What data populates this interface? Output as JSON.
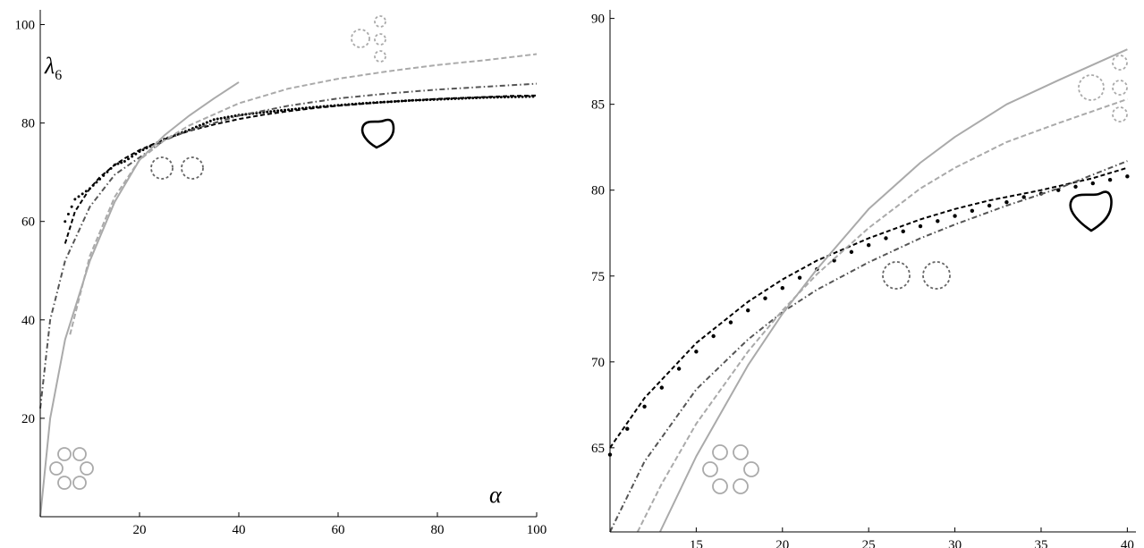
{
  "chart_data": [
    {
      "type": "line",
      "title": "",
      "xlabel": "α",
      "ylabel": "λ",
      "ylabel_subscript": "6",
      "xlim": [
        0,
        100
      ],
      "ylim": [
        0,
        103
      ],
      "x_ticks": [
        "20",
        "40",
        "60",
        "80",
        "100"
      ],
      "y_ticks": [
        "20",
        "40",
        "60",
        "80",
        "100"
      ],
      "grid": false,
      "legend": "none",
      "series": [
        {
          "style": "dotted-black",
          "x": [
            5,
            7,
            10,
            12,
            15,
            17,
            20,
            25,
            30,
            35,
            40,
            45,
            50,
            55,
            60,
            65,
            70,
            75,
            80,
            85,
            90,
            95,
            100
          ],
          "y": [
            60,
            64.5,
            66.7,
            68.6,
            71.5,
            72.2,
            74.2,
            76.7,
            78.6,
            80.7,
            81.6,
            82.2,
            82.7,
            83.2,
            83.6,
            84.0,
            84.3,
            84.6,
            84.8,
            85.0,
            85.2,
            85.3,
            85.4
          ]
        },
        {
          "style": "dashed-black",
          "x": [
            5,
            7,
            10,
            12,
            15,
            17,
            20,
            25,
            30,
            35,
            40,
            45,
            50,
            55,
            60,
            65,
            70,
            75,
            80,
            85,
            90,
            95,
            100
          ],
          "y": [
            55.5,
            62.0,
            66.7,
            69.0,
            71.5,
            72.8,
            74.5,
            76.7,
            78.4,
            79.7,
            80.8,
            81.7,
            82.4,
            83.0,
            83.5,
            83.9,
            84.3,
            84.6,
            84.9,
            85.1,
            85.3,
            85.5,
            85.6
          ]
        },
        {
          "style": "dashdot-dark-gray",
          "x": [
            0,
            2,
            5,
            10,
            15,
            20,
            25,
            30,
            40,
            50,
            60,
            70,
            80,
            90,
            100
          ],
          "y": [
            22,
            40,
            52,
            63,
            69.5,
            73,
            76.5,
            78.5,
            81.5,
            83.5,
            85,
            86,
            86.8,
            87.4,
            88
          ]
        },
        {
          "style": "dashed-light-gray",
          "x": [
            6,
            10,
            15,
            20,
            25,
            30,
            40,
            50,
            60,
            70,
            80,
            90,
            100
          ],
          "y": [
            37,
            53,
            65,
            72.5,
            76.5,
            79.5,
            84,
            87,
            89,
            90.5,
            91.8,
            92.8,
            94
          ]
        },
        {
          "style": "solid-light-gray",
          "x": [
            0,
            2,
            5,
            10,
            15,
            20,
            25,
            30,
            35,
            40
          ],
          "y": [
            0,
            20,
            36,
            52,
            64,
            72.5,
            77.5,
            81.5,
            85,
            88.3
          ]
        }
      ]
    },
    {
      "type": "line",
      "title": "",
      "xlabel": "",
      "ylabel": "",
      "xlim": [
        10,
        40.5
      ],
      "ylim": [
        60.1,
        90.5
      ],
      "x_ticks": [
        "15",
        "20",
        "25",
        "30",
        "35",
        "40"
      ],
      "y_ticks": [
        "65",
        "70",
        "75",
        "80",
        "85",
        "90"
      ],
      "grid": false,
      "legend": "none",
      "series": [
        {
          "style": "dotted-black",
          "x": [
            10,
            11,
            12,
            13,
            14,
            15,
            16,
            17,
            18,
            19,
            20,
            21,
            22,
            23,
            24,
            25,
            26,
            27,
            28,
            29,
            30,
            31,
            32,
            33,
            34,
            35,
            36,
            37,
            38,
            39,
            40
          ],
          "y": [
            64.6,
            66.1,
            67.4,
            68.5,
            69.6,
            70.6,
            71.5,
            72.3,
            73.0,
            73.7,
            74.3,
            74.9,
            75.4,
            75.9,
            76.4,
            76.8,
            77.2,
            77.6,
            77.9,
            78.2,
            78.5,
            78.8,
            79.1,
            79.3,
            79.6,
            79.8,
            80.0,
            80.2,
            80.4,
            80.6,
            80.8
          ]
        },
        {
          "style": "dashed-black",
          "x": [
            10,
            12,
            15,
            18,
            20,
            22,
            25,
            28,
            30,
            32,
            35,
            38,
            40
          ],
          "y": [
            65.0,
            67.9,
            71.1,
            73.5,
            74.8,
            75.9,
            77.2,
            78.3,
            78.9,
            79.4,
            80.0,
            80.7,
            81.3
          ]
        },
        {
          "style": "dashdot-dark-gray",
          "x": [
            10,
            12,
            15,
            18,
            20,
            22,
            25,
            28,
            30,
            33,
            36,
            40
          ],
          "y": [
            60.1,
            64.2,
            68.4,
            71.3,
            72.9,
            74.2,
            75.8,
            77.2,
            78.0,
            79.1,
            80.1,
            81.7
          ]
        },
        {
          "style": "dashed-light-gray",
          "x": [
            11.6,
            13,
            15,
            18,
            20,
            22,
            25,
            28,
            30,
            33,
            36,
            40
          ],
          "y": [
            60.1,
            62.9,
            66.4,
            70.6,
            73.0,
            75.1,
            77.8,
            80.1,
            81.3,
            82.8,
            83.9,
            85.3
          ]
        },
        {
          "style": "solid-light-gray",
          "x": [
            12.9,
            15,
            18,
            20,
            22,
            25,
            28,
            30,
            33,
            36,
            40
          ],
          "y": [
            60.1,
            64.5,
            69.8,
            72.8,
            75.4,
            78.9,
            81.6,
            83.1,
            85.0,
            86.4,
            88.2
          ]
        }
      ]
    }
  ]
}
